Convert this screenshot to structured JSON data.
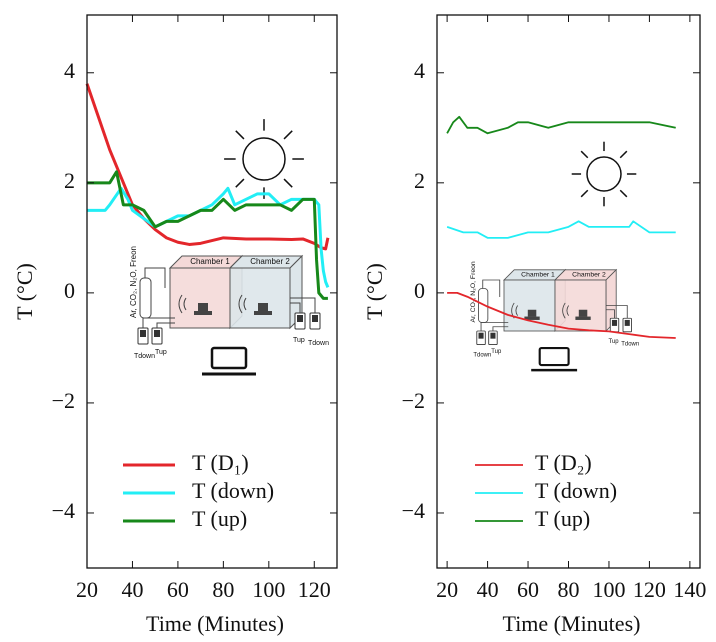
{
  "chart_data": [
    {
      "type": "line",
      "xlabel": "Time (Minutes)",
      "ylabel": "T (°C)",
      "xlim": [
        20,
        130
      ],
      "ylim": [
        -5,
        5.05
      ],
      "xticks": [
        20,
        40,
        60,
        80,
        100,
        120
      ],
      "yticks": [
        {
          "value": -4,
          "label": "−4"
        },
        {
          "value": -2,
          "label": "−2"
        },
        0,
        2,
        4
      ],
      "annotations": [
        "Chamber 1",
        "Chamber 2",
        "Ar, CO₂, N₂O, Freon",
        "Tdown",
        "Tup",
        "Tup",
        "Tdown"
      ],
      "series": [
        {
          "name": "T (D₁)",
          "color": "#e3262b",
          "x": [
            20,
            25,
            30,
            35,
            40,
            45,
            50,
            55,
            60,
            65,
            70,
            75,
            80,
            90,
            100,
            110,
            115,
            120,
            123,
            125,
            126
          ],
          "values": [
            3.8,
            3.2,
            2.6,
            2.1,
            1.6,
            1.35,
            1.15,
            1.0,
            0.92,
            0.88,
            0.9,
            0.95,
            1.0,
            0.98,
            0.98,
            0.97,
            0.98,
            0.9,
            0.82,
            0.8,
            1.0
          ]
        },
        {
          "name": "T (down)",
          "color": "#22eef5",
          "x": [
            20,
            28,
            30,
            35,
            38,
            40,
            50,
            55,
            60,
            65,
            70,
            75,
            80,
            82,
            85,
            90,
            95,
            100,
            105,
            110,
            115,
            120,
            122,
            123,
            124,
            125,
            126
          ],
          "values": [
            1.5,
            1.5,
            1.6,
            1.9,
            1.7,
            1.5,
            1.2,
            1.3,
            1.4,
            1.4,
            1.5,
            1.6,
            1.8,
            1.9,
            1.6,
            1.7,
            1.8,
            1.8,
            1.6,
            1.7,
            1.7,
            1.7,
            1.6,
            0.8,
            0.4,
            0.2,
            0.1
          ]
        },
        {
          "name": "T (up)",
          "color": "#17881a",
          "x": [
            20,
            30,
            33,
            36,
            40,
            45,
            50,
            55,
            60,
            65,
            70,
            75,
            80,
            85,
            90,
            95,
            100,
            105,
            110,
            115,
            120,
            121,
            122,
            124,
            126
          ],
          "values": [
            2.0,
            2.0,
            2.2,
            1.6,
            1.6,
            1.5,
            1.2,
            1.3,
            1.3,
            1.4,
            1.5,
            1.5,
            1.7,
            1.5,
            1.6,
            1.6,
            1.6,
            1.6,
            1.5,
            1.7,
            1.7,
            0.6,
            0.0,
            -0.1,
            -0.1
          ]
        }
      ]
    },
    {
      "type": "line",
      "xlabel": "Time (Minutes)",
      "ylabel": "T (°C)",
      "xlim": [
        15,
        145
      ],
      "ylim": [
        -5,
        5.05
      ],
      "xticks": [
        20,
        40,
        60,
        80,
        100,
        120,
        140
      ],
      "yticks": [
        {
          "value": -4,
          "label": "−4"
        },
        {
          "value": -2,
          "label": "−2"
        },
        0,
        2,
        4
      ],
      "annotations": [
        "Chamber 1",
        "Chamber 2",
        "Ar, CO₂, N₂O, Freon",
        "Tdown",
        "Tup",
        "Tup",
        "Tdown"
      ],
      "series": [
        {
          "name": "T (D₂)",
          "color": "#e3262b",
          "x": [
            20,
            25,
            30,
            40,
            50,
            60,
            70,
            80,
            90,
            100,
            110,
            120,
            133
          ],
          "values": [
            0.0,
            0.0,
            -0.07,
            -0.25,
            -0.4,
            -0.5,
            -0.58,
            -0.65,
            -0.68,
            -0.7,
            -0.75,
            -0.8,
            -0.82
          ]
        },
        {
          "name": "T (down)",
          "color": "#22eef5",
          "x": [
            20,
            28,
            35,
            40,
            50,
            60,
            70,
            80,
            85,
            90,
            100,
            110,
            112,
            120,
            133
          ],
          "values": [
            1.2,
            1.1,
            1.1,
            1.0,
            1.0,
            1.1,
            1.1,
            1.2,
            1.3,
            1.2,
            1.2,
            1.2,
            1.3,
            1.1,
            1.1
          ]
        },
        {
          "name": "T (up)",
          "color": "#17881a",
          "x": [
            20,
            23,
            26,
            30,
            35,
            40,
            50,
            55,
            60,
            70,
            80,
            90,
            100,
            110,
            120,
            133
          ],
          "values": [
            2.9,
            3.1,
            3.2,
            3.0,
            3.0,
            2.9,
            3.0,
            3.1,
            3.1,
            3.0,
            3.1,
            3.1,
            3.1,
            3.1,
            3.1,
            3.0
          ]
        }
      ]
    }
  ]
}
